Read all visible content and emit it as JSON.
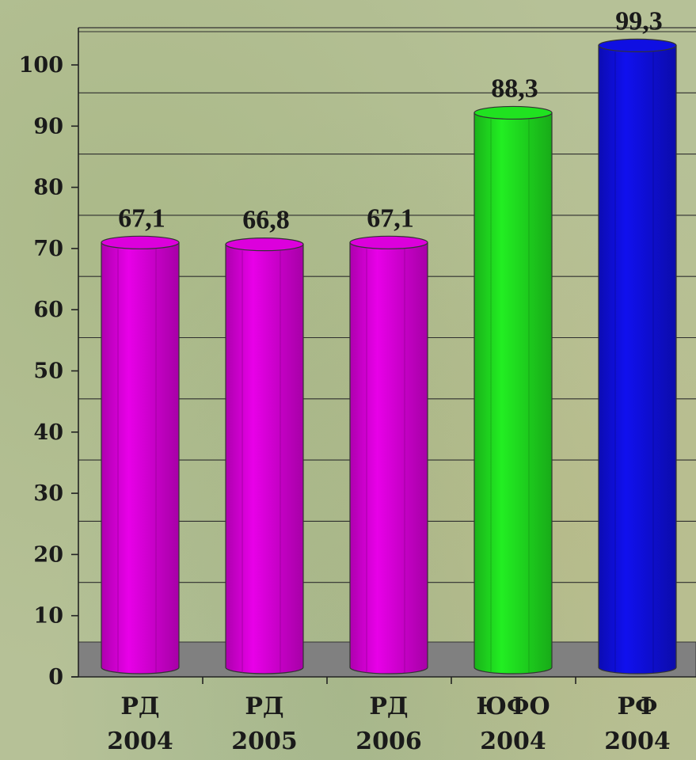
{
  "chart_data": {
    "type": "bar",
    "style": "3d-cylinder",
    "categories": [
      [
        "РД",
        "2004"
      ],
      [
        "РД",
        "2005"
      ],
      [
        "РД",
        "2006"
      ],
      [
        "ЮФО",
        "2004"
      ],
      [
        "РФ",
        "2004"
      ]
    ],
    "values": [
      67.1,
      66.8,
      67.1,
      88.3,
      99.3
    ],
    "value_labels": [
      "67,1",
      "66,8",
      "67,1",
      "88,3",
      "99,3"
    ],
    "bar_colors": [
      "#e800e8",
      "#e800e8",
      "#e800e8",
      "#22ee22",
      "#1010ee"
    ],
    "yticks": [
      0,
      10,
      20,
      30,
      40,
      50,
      60,
      70,
      80,
      90,
      100
    ],
    "ylim": [
      0,
      100
    ],
    "grid": true,
    "legend": "none",
    "title": "",
    "xlabel": "",
    "ylabel": ""
  }
}
